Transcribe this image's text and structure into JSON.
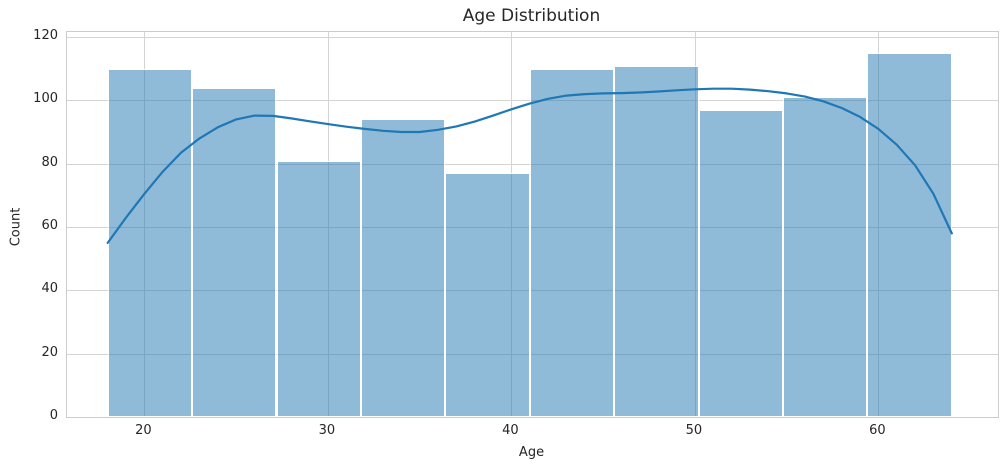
{
  "figure": {
    "title": "Age Distribution",
    "xlabel": "Age",
    "ylabel": "Count"
  },
  "chart_data": {
    "type": "bar",
    "subtype": "histogram_with_kde",
    "title": "Age Distribution",
    "xlabel": "Age",
    "ylabel": "Count",
    "bin_edges": [
      18,
      22.6,
      27.2,
      31.8,
      36.4,
      41,
      45.6,
      50.2,
      54.8,
      59.4,
      64
    ],
    "counts": [
      110,
      104,
      81,
      94,
      77,
      110,
      111,
      97,
      101,
      115
    ],
    "kde_line": {
      "x": [
        18,
        19,
        20,
        21,
        22,
        23,
        24,
        25,
        26,
        27,
        28,
        29,
        30,
        31,
        32,
        33,
        34,
        35,
        36,
        37,
        38,
        39,
        40,
        41,
        42,
        43,
        44,
        45,
        46,
        47,
        48,
        49,
        50,
        51,
        52,
        53,
        54,
        55,
        56,
        57,
        58,
        59,
        60,
        61,
        62,
        63,
        64
      ],
      "y": [
        55,
        63,
        70.5,
        77.5,
        83.5,
        88,
        91.5,
        94,
        95.2,
        95.1,
        94.3,
        93.4,
        92.5,
        91.7,
        91,
        90.4,
        90,
        90,
        90.7,
        91.8,
        93.3,
        95.2,
        97.2,
        99,
        100.5,
        101.5,
        102,
        102.2,
        102.3,
        102.5,
        102.8,
        103.2,
        103.5,
        103.7,
        103.7,
        103.4,
        102.9,
        102.2,
        101.2,
        99.7,
        97.6,
        94.8,
        91,
        86,
        79.5,
        70.5,
        58
      ]
    },
    "x_ticks": [
      20,
      30,
      40,
      50,
      60
    ],
    "y_ticks": [
      0,
      20,
      40,
      60,
      80,
      100,
      120
    ],
    "xlim": [
      15.78,
      66.52
    ],
    "ylim": [
      0,
      121.6
    ],
    "grid": true,
    "legend": null,
    "colors": {
      "bar_fill": "rgba(31,119,180,0.5)",
      "bar_edge": "#ffffff",
      "kde_line": "#1f77b4",
      "grid": "#d4d4d4",
      "spine": "#cccccc",
      "text": "#262626"
    }
  }
}
